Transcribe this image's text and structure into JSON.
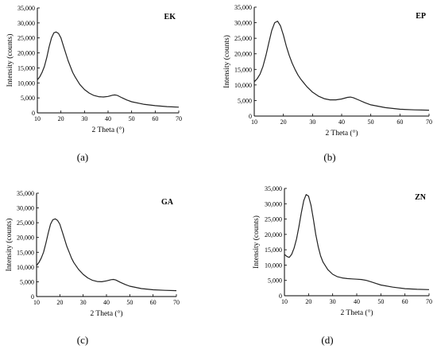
{
  "chart_data": [
    {
      "type": "line",
      "tag": "EK",
      "caption": "(a)",
      "xlabel": "2 Theta (°)",
      "ylabel": "Intensity (counts)",
      "xlim": [
        10,
        70
      ],
      "ylim": [
        0,
        35000
      ],
      "xticks": [
        10,
        20,
        30,
        40,
        50,
        60,
        70
      ],
      "yticks": [
        0,
        5000,
        10000,
        15000,
        20000,
        25000,
        30000,
        35000
      ],
      "ytick_labels": [
        "0",
        "5,000",
        "10,000",
        "15,000",
        "20,000",
        "25,000",
        "30,000",
        "35,000"
      ],
      "x": [
        10,
        11,
        12,
        13,
        14,
        15,
        16,
        17,
        18,
        19,
        20,
        21,
        22,
        23,
        24,
        25,
        26,
        28,
        30,
        32,
        34,
        36,
        38,
        40,
        42,
        43,
        44,
        46,
        48,
        50,
        55,
        60,
        65,
        70
      ],
      "y": [
        11000,
        12000,
        13500,
        15500,
        18500,
        22000,
        25000,
        26700,
        27000,
        26500,
        25000,
        22500,
        20000,
        17500,
        15500,
        13500,
        12000,
        9500,
        7800,
        6600,
        5800,
        5400,
        5300,
        5500,
        5900,
        6000,
        5800,
        5000,
        4300,
        3700,
        2900,
        2400,
        2100,
        1900
      ]
    },
    {
      "type": "line",
      "tag": "EP",
      "caption": "(b)",
      "xlabel": "2 Theta (°)",
      "ylabel": "Intensity (counts)",
      "xlim": [
        10,
        70
      ],
      "ylim": [
        0,
        35000
      ],
      "xticks": [
        10,
        20,
        30,
        40,
        50,
        60,
        70
      ],
      "yticks": [
        0,
        5000,
        10000,
        15000,
        20000,
        25000,
        30000,
        35000
      ],
      "ytick_labels": [
        "0",
        "5,000",
        "10,000",
        "15,000",
        "20,000",
        "25,000",
        "30,000",
        "35,000"
      ],
      "x": [
        10,
        11,
        12,
        13,
        14,
        15,
        16,
        17,
        18,
        19,
        20,
        21,
        22,
        23,
        24,
        25,
        26,
        28,
        30,
        32,
        34,
        36,
        38,
        40,
        42,
        43,
        44,
        46,
        48,
        50,
        55,
        60,
        65,
        70
      ],
      "y": [
        11000,
        12000,
        13500,
        16000,
        19500,
        23500,
        27500,
        30000,
        30500,
        29000,
        26000,
        22500,
        19500,
        17000,
        15000,
        13200,
        11800,
        9500,
        7700,
        6400,
        5600,
        5200,
        5200,
        5500,
        6000,
        6100,
        5900,
        5100,
        4300,
        3600,
        2700,
        2200,
        2000,
        1900
      ]
    },
    {
      "type": "line",
      "tag": "GA",
      "caption": "(c)",
      "xlabel": "2 Theta (°)",
      "ylabel": "Intensity (counts)",
      "xlim": [
        10,
        70
      ],
      "ylim": [
        0,
        35000
      ],
      "xticks": [
        10,
        20,
        30,
        40,
        50,
        60,
        70
      ],
      "yticks": [
        0,
        5000,
        10000,
        15000,
        20000,
        25000,
        30000,
        35000
      ],
      "ytick_labels": [
        "0",
        "5,000",
        "10,000",
        "15,000",
        "20,000",
        "25,000",
        "30,000",
        "35,000"
      ],
      "x": [
        10,
        11,
        12,
        13,
        14,
        15,
        16,
        17,
        18,
        19,
        20,
        21,
        22,
        23,
        24,
        25,
        26,
        28,
        30,
        32,
        34,
        36,
        38,
        40,
        42,
        43,
        44,
        46,
        48,
        50,
        55,
        60,
        65,
        70
      ],
      "y": [
        10500,
        11500,
        13000,
        15000,
        18000,
        21500,
        24500,
        26000,
        26300,
        25800,
        24500,
        22000,
        19500,
        17000,
        15000,
        13000,
        11500,
        9200,
        7500,
        6300,
        5500,
        5100,
        5000,
        5300,
        5700,
        5800,
        5600,
        4800,
        4100,
        3500,
        2700,
        2300,
        2100,
        2000
      ]
    },
    {
      "type": "line",
      "tag": "ZN",
      "caption": "(d)",
      "xlabel": "2 Theta (°)",
      "ylabel": "Intensity (counts)",
      "xlim": [
        10,
        70
      ],
      "ylim": [
        0,
        35000
      ],
      "xticks": [
        10,
        20,
        30,
        40,
        50,
        60,
        70
      ],
      "yticks": [
        0,
        5000,
        10000,
        15000,
        20000,
        25000,
        30000,
        35000
      ],
      "ytick_labels": [
        "0",
        "5,000",
        "10,000",
        "15,000",
        "20,000",
        "25,000",
        "30,000",
        "35,000"
      ],
      "x": [
        10,
        11,
        12,
        13,
        14,
        15,
        16,
        17,
        18,
        19,
        20,
        21,
        22,
        23,
        24,
        25,
        26,
        28,
        30,
        32,
        34,
        36,
        38,
        40,
        42,
        44,
        46,
        48,
        50,
        55,
        60,
        65,
        70
      ],
      "y": [
        13500,
        12800,
        12500,
        13500,
        15500,
        18500,
        22500,
        27000,
        31000,
        33000,
        32500,
        29500,
        25000,
        20000,
        16000,
        13000,
        11000,
        8500,
        7000,
        6200,
        5800,
        5600,
        5500,
        5400,
        5300,
        5000,
        4500,
        4000,
        3500,
        2800,
        2300,
        2100,
        2000
      ]
    }
  ]
}
